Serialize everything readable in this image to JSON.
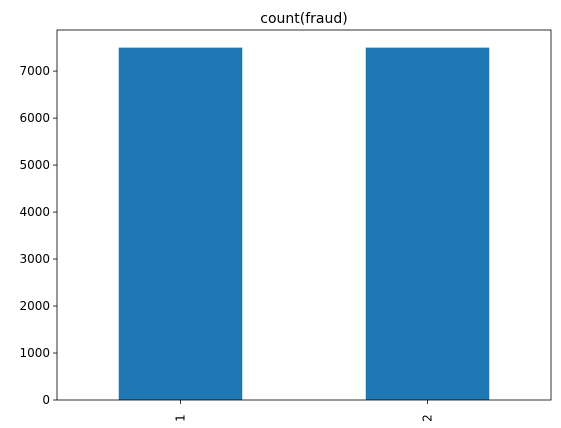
{
  "chart_data": {
    "type": "bar",
    "title": "count(fraud)",
    "xlabel": "",
    "ylabel": "",
    "categories": [
      "1",
      "2"
    ],
    "values": [
      7500,
      7500
    ],
    "ylim": [
      0,
      7875
    ],
    "yticks": [
      0,
      1000,
      2000,
      3000,
      4000,
      5000,
      6000,
      7000
    ],
    "grid": false,
    "legend": "none",
    "bar_color": "#1f77b4",
    "x_tick_rotation": "vertical"
  }
}
